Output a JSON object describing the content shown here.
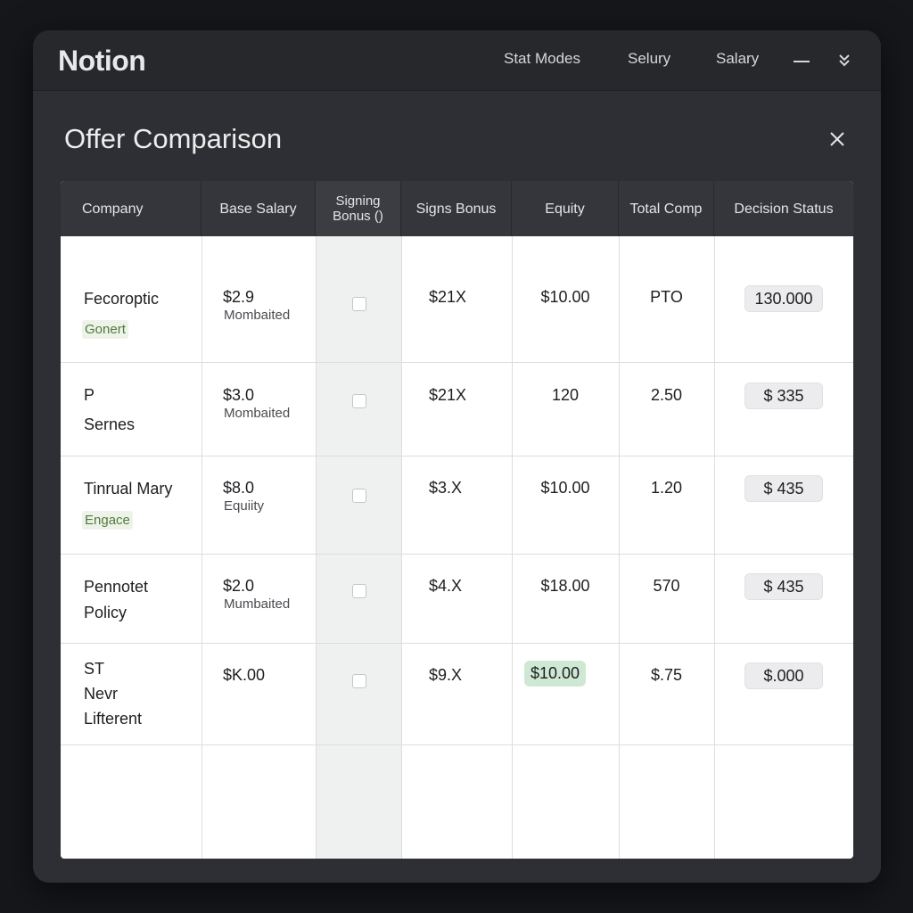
{
  "app": {
    "brand": "Notion",
    "nav": [
      "Stat Modes",
      "Selury",
      "Salary"
    ]
  },
  "page": {
    "title": "Offer Comparison"
  },
  "table": {
    "headers": {
      "company": "Company",
      "base_salary": "Base Salary",
      "signing_line1": "Signing",
      "signing_line2": "Bonus ()",
      "signs_bonus": "Signs Bonus",
      "equity": "Equity",
      "total_comp": "Total Comp",
      "decision_status": "Decision Status"
    },
    "rows": [
      {
        "company": [
          "Fecoroptic"
        ],
        "tag": "Gonert",
        "base": "$2.9",
        "base_sub": "Mombaited",
        "signs_bonus": "$21X",
        "equity": "$10.00",
        "total": "PTO",
        "status": "130.000"
      },
      {
        "company": [
          "P",
          "Sernes"
        ],
        "tag": "",
        "base": "$3.0",
        "base_sub": "Mombaited",
        "signs_bonus": "$21X",
        "equity": "120",
        "total": "2.50",
        "status": "$ 335"
      },
      {
        "company": [
          "Tinrual Mary"
        ],
        "tag": "Engace",
        "base": "$8.0",
        "base_sub": "Equiity",
        "signs_bonus": "$3.X",
        "equity": "$10.00",
        "total": "1.20",
        "status": "$ 435"
      },
      {
        "company": [
          "Pennotet",
          "Policy"
        ],
        "tag": "",
        "base": "$2.0",
        "base_sub": "Mumbaited",
        "signs_bonus": "$4.X",
        "equity": "$18.00",
        "total": "570",
        "status": "$ 435"
      },
      {
        "company": [
          "ST",
          "Nevr",
          "Lifterent"
        ],
        "tag": "",
        "base": "$K.00",
        "base_sub": "",
        "signs_bonus": "$9.X",
        "equity": "$10.00",
        "total": "$.75",
        "status": "$.000"
      }
    ]
  },
  "colors": {
    "window_bg": "#2d2f34",
    "header_bg": "#34363b",
    "highlight_green": "#cfe8d4",
    "tag_green": "#4f7a3a"
  },
  "icons": {
    "close": "close-icon",
    "minimize": "minus-icon",
    "expand": "chevron-double-down-icon"
  }
}
